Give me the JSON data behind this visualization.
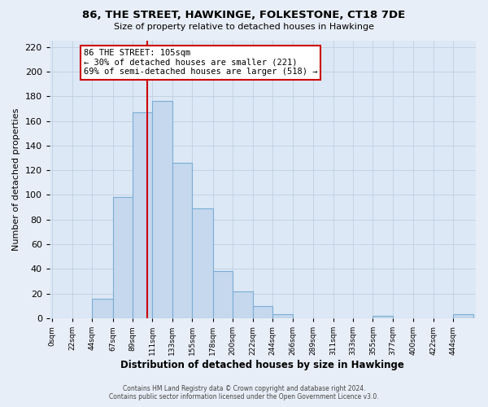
{
  "title": "86, THE STREET, HAWKINGE, FOLKESTONE, CT18 7DE",
  "subtitle": "Size of property relative to detached houses in Hawkinge",
  "xlabel": "Distribution of detached houses by size in Hawkinge",
  "ylabel": "Number of detached properties",
  "bar_labels": [
    "0sqm",
    "22sqm",
    "44sqm",
    "67sqm",
    "89sqm",
    "111sqm",
    "133sqm",
    "155sqm",
    "178sqm",
    "200sqm",
    "222sqm",
    "244sqm",
    "266sqm",
    "289sqm",
    "311sqm",
    "333sqm",
    "355sqm",
    "377sqm",
    "400sqm",
    "422sqm",
    "444sqm"
  ],
  "bar_values": [
    0,
    0,
    16,
    98,
    167,
    176,
    126,
    89,
    38,
    22,
    10,
    3,
    0,
    0,
    0,
    0,
    2,
    0,
    0,
    0,
    3
  ],
  "bar_color": "#c5d8ee",
  "bar_edge_color": "#7aadd4",
  "vline_x": 105,
  "vline_color": "#cc0000",
  "ylim": [
    0,
    225
  ],
  "yticks": [
    0,
    20,
    40,
    60,
    80,
    100,
    120,
    140,
    160,
    180,
    200,
    220
  ],
  "annotation_title": "86 THE STREET: 105sqm",
  "annotation_line1": "← 30% of detached houses are smaller (221)",
  "annotation_line2": "69% of semi-detached houses are larger (518) →",
  "annotation_box_edge": "#cc0000",
  "bin_edges": [
    0,
    22,
    44,
    67,
    89,
    111,
    133,
    155,
    178,
    200,
    222,
    244,
    266,
    289,
    311,
    333,
    355,
    377,
    400,
    422,
    444,
    466
  ],
  "footer_line1": "Contains HM Land Registry data © Crown copyright and database right 2024.",
  "footer_line2": "Contains public sector information licensed under the Open Government Licence v3.0.",
  "bg_color": "#e8eef7",
  "plot_bg_color": "#dce8f5"
}
